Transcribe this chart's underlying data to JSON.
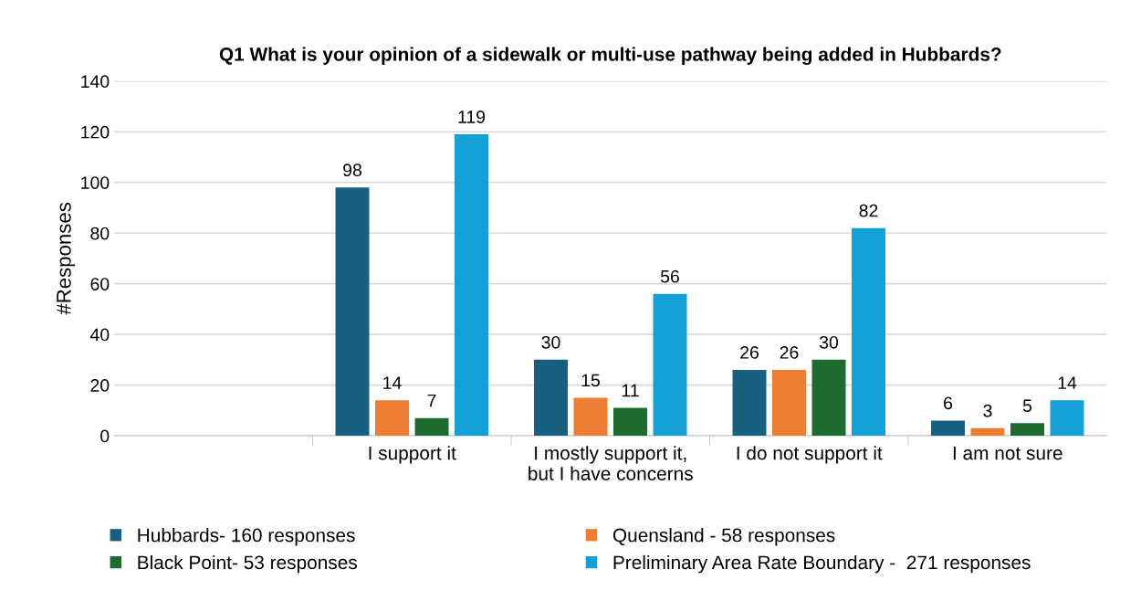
{
  "chart_data": {
    "type": "bar",
    "title": "Q1 What is your opinion of a sidewalk or multi-use pathway being added in Hubbards?",
    "ylabel": "#Responses",
    "categories": [
      null,
      "I support it",
      "I mostly support it,\nbut I have concerns",
      "I do not support it",
      "I am not sure"
    ],
    "series": [
      {
        "name": "Hubbards- 160 responses",
        "color": "#17607f",
        "values": [
          null,
          98,
          30,
          26,
          6
        ]
      },
      {
        "name": "Quensland - 58 responses",
        "color": "#ed7d31",
        "values": [
          null,
          14,
          15,
          26,
          3
        ]
      },
      {
        "name": "Black Point- 53 responses",
        "color": "#1e6b30",
        "values": [
          null,
          7,
          11,
          30,
          5
        ]
      },
      {
        "name": "Preliminary Area Rate Boundary -  271 responses",
        "color": "#12a0d7",
        "values": [
          null,
          119,
          56,
          82,
          14
        ]
      }
    ],
    "ylim": [
      0,
      140
    ],
    "yticks": [
      0,
      20,
      40,
      60,
      80,
      100,
      120,
      140
    ],
    "grid": "y",
    "legend": "bottom",
    "data_labels": true
  }
}
